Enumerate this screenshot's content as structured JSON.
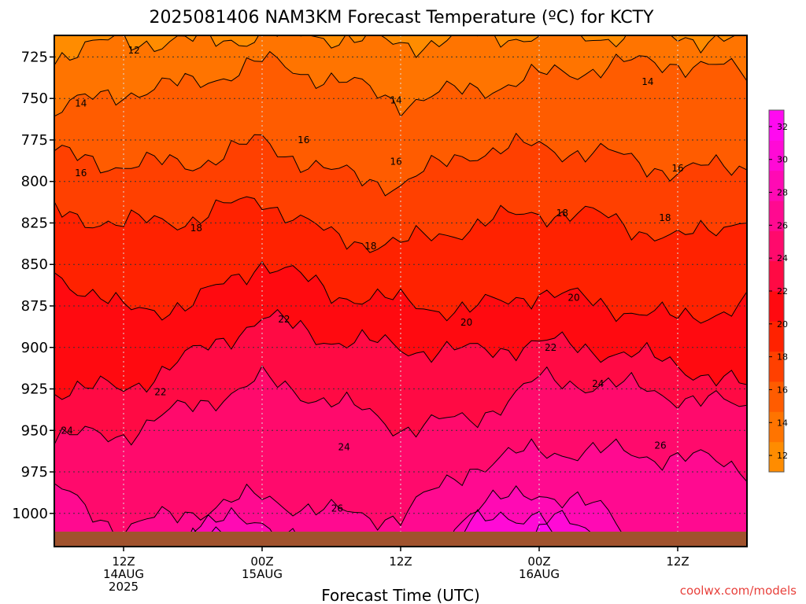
{
  "chart_data": {
    "type": "heatmap",
    "title": "2025081406 NAM3KM Forecast Temperature (ºC) for KCTY",
    "xlabel": "Forecast Time (UTC)",
    "ylabel": "",
    "y_ticks": [
      "725",
      "750",
      "775",
      "800",
      "825",
      "850",
      "875",
      "900",
      "925",
      "950",
      "975",
      "1000"
    ],
    "y_range": [
      712,
      1020
    ],
    "x_range": [
      6,
      66
    ],
    "x_ticks": [
      {
        "hour": 12,
        "line1": "12Z",
        "line2": "14AUG",
        "line3": "2025"
      },
      {
        "hour": 24,
        "line1": "00Z",
        "line2": "15AUG",
        "line3": ""
      },
      {
        "hour": 36,
        "line1": "12Z",
        "line2": "",
        "line3": ""
      },
      {
        "hour": 48,
        "line1": "00Z",
        "line2": "16AUG",
        "line3": ""
      },
      {
        "hour": 60,
        "line1": "12Z",
        "line2": "",
        "line3": ""
      }
    ],
    "grid": true,
    "colorbar": {
      "placement": "right",
      "ticks": [
        "12",
        "14",
        "16",
        "18",
        "20",
        "22",
        "24",
        "26",
        "28",
        "30",
        "32"
      ],
      "levels": [
        11,
        13,
        15,
        17,
        19,
        21,
        23,
        25,
        27,
        29,
        31,
        33
      ],
      "colors": [
        "#ff8c00",
        "#ff7400",
        "#ff5c00",
        "#ff4000",
        "#ff2200",
        "#ff0a10",
        "#ff0a44",
        "#ff0a6c",
        "#ff0a90",
        "#ff0ab4",
        "#ff0ad6",
        "#ff0af0"
      ]
    },
    "contour_levels": [
      12,
      14,
      16,
      18,
      20,
      22,
      24,
      26,
      28,
      30,
      32
    ],
    "isotherm_pressures": {
      "hours": [
        6,
        12,
        18,
        24,
        30,
        36,
        42,
        48,
        54,
        60,
        66
      ],
      "t12": [
        724,
        715,
        716,
        712,
        712,
        718,
        712,
        712,
        712,
        712,
        716
      ],
      "t14": [
        757,
        746,
        741,
        728,
        738,
        752,
        745,
        737,
        730,
        728,
        735
      ],
      "t16": [
        784,
        790,
        789,
        776,
        795,
        802,
        782,
        779,
        784,
        794,
        790
      ],
      "t18": [
        818,
        826,
        822,
        810,
        834,
        838,
        827,
        818,
        822,
        836,
        820
      ],
      "t20": [
        855,
        878,
        874,
        848,
        867,
        873,
        878,
        866,
        875,
        883,
        874
      ],
      "t22": [
        925,
        925,
        905,
        882,
        895,
        900,
        903,
        897,
        902,
        910,
        925
      ],
      "t24": [
        955,
        952,
        935,
        920,
        932,
        948,
        944,
        920,
        922,
        929,
        937
      ],
      "t26": [
        985,
        1010,
        998,
        990,
        1000,
        1002,
        972,
        962,
        963,
        966,
        972
      ],
      "t28": [
        1040,
        1040,
        1007,
        1004,
        1024,
        1040,
        998,
        986,
        1000,
        1040,
        1040
      ],
      "t30": [
        1040,
        1040,
        1016,
        1014,
        1040,
        1040,
        1008,
        998,
        1020,
        1040,
        1040
      ],
      "t32": [
        1040,
        1040,
        1040,
        1040,
        1040,
        1040,
        1040,
        1010,
        1040,
        1040,
        1040
      ]
    },
    "contour_labels": [
      {
        "text": "12",
        "hour": 12.9,
        "p": 721
      },
      {
        "text": "14",
        "hour": 8.3,
        "p": 753
      },
      {
        "text": "14",
        "hour": 35.6,
        "p": 751
      },
      {
        "text": "14",
        "hour": 57.4,
        "p": 740
      },
      {
        "text": "16",
        "hour": 8.3,
        "p": 795
      },
      {
        "text": "16",
        "hour": 27.6,
        "p": 775
      },
      {
        "text": "16",
        "hour": 35.6,
        "p": 788
      },
      {
        "text": "16",
        "hour": 60.0,
        "p": 792
      },
      {
        "text": "18",
        "hour": 18.3,
        "p": 828
      },
      {
        "text": "18",
        "hour": 33.4,
        "p": 839
      },
      {
        "text": "18",
        "hour": 50.0,
        "p": 819
      },
      {
        "text": "18",
        "hour": 58.9,
        "p": 822
      },
      {
        "text": "20",
        "hour": 41.7,
        "p": 885
      },
      {
        "text": "20",
        "hour": 51.0,
        "p": 870
      },
      {
        "text": "22",
        "hour": 15.2,
        "p": 927
      },
      {
        "text": "22",
        "hour": 25.9,
        "p": 883
      },
      {
        "text": "22",
        "hour": 49.0,
        "p": 900
      },
      {
        "text": "24",
        "hour": 7.1,
        "p": 950
      },
      {
        "text": "24",
        "hour": 31.1,
        "p": 960
      },
      {
        "text": "24",
        "hour": 53.1,
        "p": 922
      },
      {
        "text": "26",
        "hour": 30.5,
        "p": 997
      },
      {
        "text": "26",
        "hour": 58.5,
        "p": 959
      }
    ],
    "ground_color": "#a0522d"
  },
  "credit": "coolwx.com/models"
}
